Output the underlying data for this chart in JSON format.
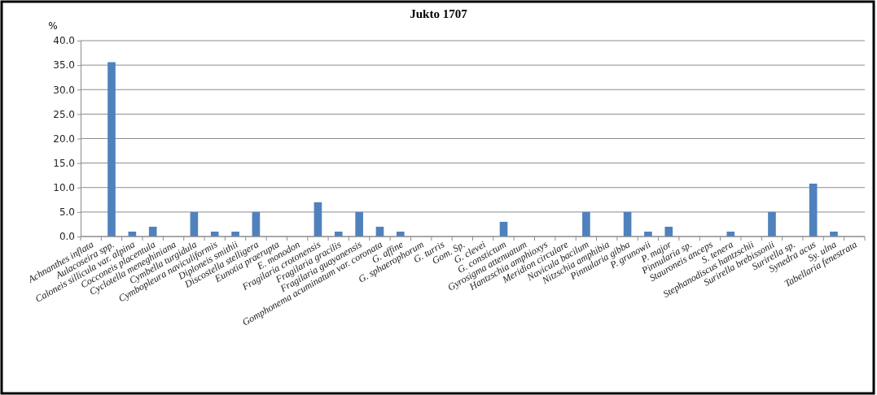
{
  "chart_data": {
    "type": "bar",
    "title": "Jukto 1707",
    "ylabel": "%",
    "categories": [
      "Achnanthes inflata",
      "Aulacoseira spp.",
      "Caloneis sillicula var. alpina",
      "Cocconeis placentula",
      "Cyclotella meneghiniana",
      "Cymbella turgidula",
      "Cymbopleura naviculiformis",
      "Diploneis smithii",
      "Discostella stelligera",
      "Eunotia praerupta",
      "E. monodon",
      "Fragilaria crotonensis",
      "Fragilaria gracilis",
      "Fragilaria guayanensis",
      "Gomphonema acuminatum var. coronata",
      "G. affine",
      "G. sphaerophorum",
      "G. turris",
      "Gom. Sp.",
      "G. clevei",
      "G. constictum",
      "Gyrosigma attenuatum",
      "Hantzschia amphioxys",
      "Meridion circulare",
      "Navicula bacilum",
      "Nitzschia amphibia",
      "Pinnularia gibba",
      "P. grunowii",
      "P. major",
      "Pinnularia sp.",
      "Stauroneis anceps",
      "S. tenera",
      "Stephanodiscus hantzschii",
      "Surirella brebissonii",
      "Surirella sp.",
      "Synedra acus",
      "Sy. ulna",
      "Tabellaria fenestrata"
    ],
    "values": [
      0,
      35.6,
      1,
      2,
      0,
      5,
      1,
      1,
      5,
      0,
      0,
      7,
      1,
      5,
      2,
      1,
      0,
      0,
      0,
      0,
      3,
      0,
      0,
      0,
      5,
      0,
      5,
      1,
      2,
      0,
      0,
      1,
      0,
      5,
      0,
      10.8,
      1,
      0
    ],
    "color": "#4f81bd",
    "ylim": [
      0,
      40
    ],
    "yticks": [
      {
        "value": 0,
        "label": "0.0"
      },
      {
        "value": 5,
        "label": "5.0"
      },
      {
        "value": 10,
        "label": "10.0"
      },
      {
        "value": 15,
        "label": "15.0"
      },
      {
        "value": 20,
        "label": "20.0"
      },
      {
        "value": 25,
        "label": "25.0"
      },
      {
        "value": 30,
        "label": "30.0"
      },
      {
        "value": 35,
        "label": "35.0"
      },
      {
        "value": 40,
        "label": "40.0"
      }
    ],
    "grid": "y"
  }
}
